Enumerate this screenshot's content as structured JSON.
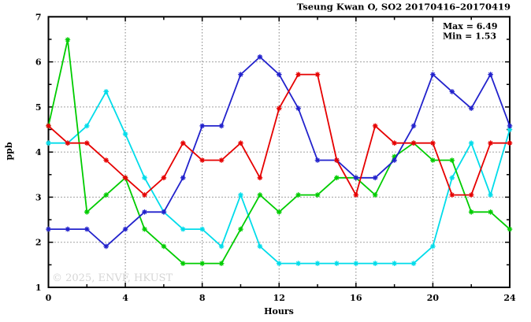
{
  "header": {
    "title": "Tseung Kwan O, SO2 20170416–20170419"
  },
  "annotation": {
    "max": "Max = 6.49",
    "min": "Min = 1.53"
  },
  "watermark": "© 2025, ENVF, HKUST",
  "chart_data": {
    "type": "line",
    "title": "Tseung Kwan O, SO2 20170416–20170419",
    "xlabel": "Hours",
    "ylabel": "ppb",
    "xlim": [
      0,
      24
    ],
    "ylim": [
      1,
      7
    ],
    "x_major_ticks": [
      0,
      4,
      8,
      12,
      16,
      20,
      24
    ],
    "x_tick_labels": [
      "0",
      "4",
      "8",
      "12",
      "16",
      "20",
      "24"
    ],
    "x_minor_step": 2,
    "y_major_ticks": [
      1,
      2,
      3,
      4,
      5,
      6,
      7
    ],
    "y_tick_labels": [
      "1",
      "2",
      "3",
      "4",
      "5",
      "6",
      "7"
    ],
    "y_minor_step": 0.5,
    "x_grid": [
      4,
      8,
      12,
      16,
      20
    ],
    "y_grid": [
      2,
      3,
      4,
      5,
      6
    ],
    "grid": true,
    "legend": "none",
    "marker": "asterisk",
    "max_value": 6.49,
    "min_value": 1.53,
    "x": [
      0,
      1,
      2,
      3,
      4,
      5,
      6,
      7,
      8,
      9,
      10,
      11,
      12,
      13,
      14,
      15,
      16,
      17,
      18,
      19,
      20,
      21,
      22,
      23,
      24
    ],
    "series": [
      {
        "name": "cyan",
        "color": "#00dcea",
        "values": [
          4.2,
          4.2,
          4.58,
          5.34,
          4.4,
          3.43,
          2.67,
          2.29,
          2.29,
          1.91,
          3.05,
          1.91,
          1.53,
          1.53,
          1.53,
          1.53,
          1.53,
          1.53,
          1.53,
          1.53,
          1.91,
          3.43,
          4.2,
          3.05,
          4.5
        ]
      },
      {
        "name": "green",
        "color": "#00cc00",
        "values": [
          4.58,
          6.49,
          2.67,
          3.05,
          3.43,
          2.29,
          1.91,
          1.53,
          1.53,
          1.53,
          2.29,
          3.05,
          2.67,
          3.05,
          3.05,
          3.43,
          3.43,
          3.05,
          3.9,
          4.2,
          3.82,
          3.82,
          2.67,
          2.67,
          2.29
        ]
      },
      {
        "name": "blue",
        "color": "#2222cc",
        "values": [
          2.29,
          2.29,
          2.29,
          1.91,
          2.29,
          2.67,
          2.67,
          3.43,
          4.58,
          4.58,
          5.72,
          6.11,
          5.72,
          4.97,
          3.82,
          3.82,
          3.43,
          3.43,
          3.82,
          4.58,
          5.72,
          5.34,
          4.97,
          5.72,
          4.58
        ]
      },
      {
        "name": "red",
        "color": "#e60000",
        "values": [
          4.58,
          4.2,
          4.2,
          3.82,
          3.43,
          3.05,
          3.43,
          4.2,
          3.82,
          3.82,
          4.2,
          3.43,
          4.97,
          5.72,
          5.72,
          3.82,
          3.05,
          4.58,
          4.2,
          4.2,
          4.2,
          3.05,
          3.05,
          4.2,
          4.2
        ]
      }
    ]
  }
}
